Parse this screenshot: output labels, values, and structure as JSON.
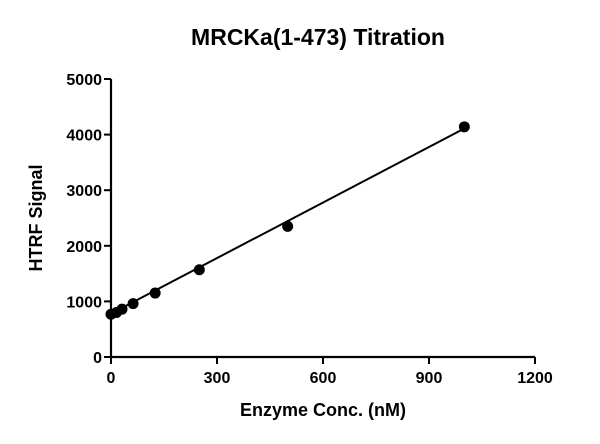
{
  "chart_data": {
    "type": "scatter",
    "title": "MRCKa(1-473) Titration",
    "xlabel": "Enzyme Conc. (nM)",
    "ylabel": "HTRF Signal",
    "xlim": [
      0,
      1200
    ],
    "ylim": [
      0,
      5000
    ],
    "xticks": [
      0,
      300,
      600,
      900,
      1200
    ],
    "yticks": [
      0,
      1000,
      2000,
      3000,
      4000,
      5000
    ],
    "grid": false,
    "legend": null,
    "series": [
      {
        "name": "MRCKa(1-473)",
        "marker": "circle",
        "color": "#000000",
        "x": [
          0,
          15.6,
          31.25,
          62.5,
          125,
          250,
          500,
          1000
        ],
        "y": [
          770,
          800,
          860,
          960,
          1150,
          1570,
          2350,
          4140
        ]
      }
    ],
    "fit_line": {
      "type": "linear",
      "x": [
        0,
        1000
      ],
      "y": [
        780,
        4110
      ]
    }
  }
}
